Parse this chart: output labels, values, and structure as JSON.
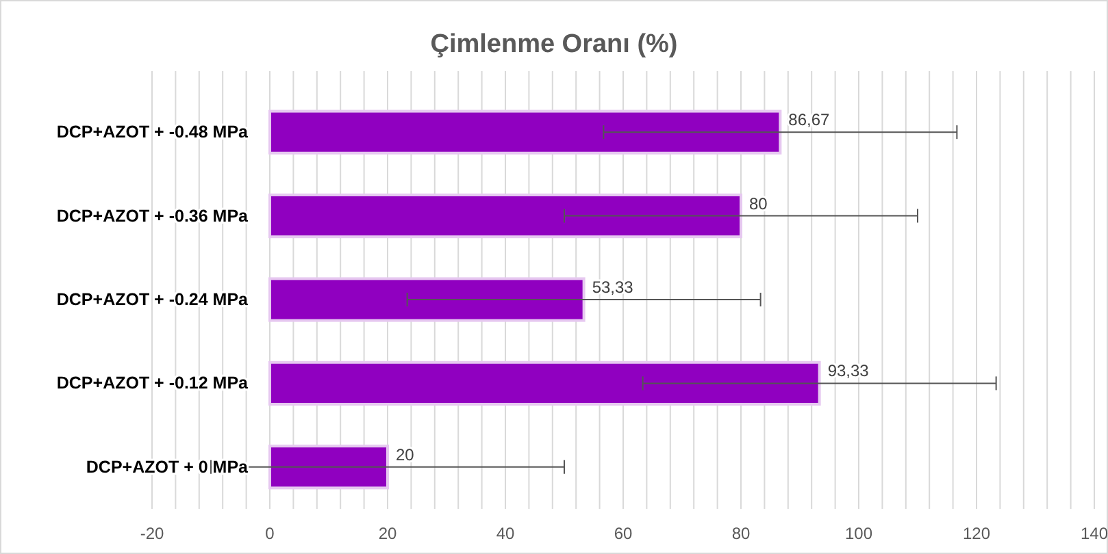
{
  "chart_data": {
    "type": "bar",
    "orientation": "horizontal",
    "title": "Çimlenme Oranı (%)",
    "categories": [
      "DCP+AZOT + -0.48 MPa",
      "DCP+AZOT + -0.36 MPa",
      "DCP+AZOT + -0.24 MPa",
      "DCP+AZOT + -0.12 MPa",
      "DCP+AZOT + 0 MPa"
    ],
    "values": [
      86.67,
      80,
      53.33,
      93.33,
      20
    ],
    "value_labels": [
      "86,67",
      "80",
      "53,33",
      "93,33",
      "20"
    ],
    "errors": [
      30,
      30,
      30,
      30,
      30
    ],
    "color": "#9000c0",
    "xlim": [
      -20,
      140
    ],
    "xticks": [
      -20,
      {
        "value": -16,
        "label": null
      },
      {
        "value": -12,
        "label": null
      },
      {
        "value": -8,
        "label": null
      },
      {
        "value": -4,
        "label": null
      },
      0,
      {
        "value": 4,
        "label": null
      },
      {
        "value": 8,
        "label": null
      },
      {
        "value": 12,
        "label": null
      },
      {
        "value": 16,
        "label": null
      },
      20,
      {
        "value": 24,
        "label": null
      },
      {
        "value": 28,
        "label": null
      },
      {
        "value": 32,
        "label": null
      },
      {
        "value": 36,
        "label": null
      },
      40,
      {
        "value": 44,
        "label": null
      },
      {
        "value": 48,
        "label": null
      },
      {
        "value": 52,
        "label": null
      },
      {
        "value": 56,
        "label": null
      },
      60,
      {
        "value": 64,
        "label": null
      },
      {
        "value": 68,
        "label": null
      },
      {
        "value": 72,
        "label": null
      },
      {
        "value": 76,
        "label": null
      },
      80,
      {
        "value": 84,
        "label": null
      },
      {
        "value": 88,
        "label": null
      },
      {
        "value": 92,
        "label": null
      },
      {
        "value": 96,
        "label": null
      },
      100,
      {
        "value": 104,
        "label": null
      },
      {
        "value": 108,
        "label": null
      },
      {
        "value": 112,
        "label": null
      },
      {
        "value": 116,
        "label": null
      },
      120,
      {
        "value": 124,
        "label": null
      },
      {
        "value": 128,
        "label": null
      },
      {
        "value": 132,
        "label": null
      },
      {
        "value": 136,
        "label": null
      },
      140
    ],
    "grid": "x"
  }
}
